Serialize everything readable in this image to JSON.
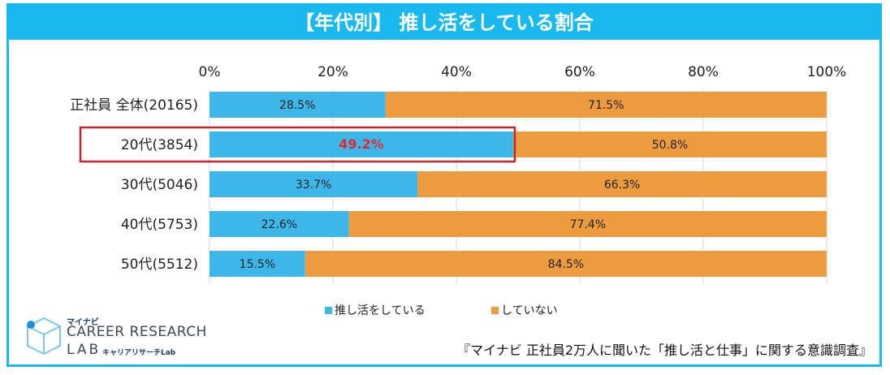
{
  "title": "【年代別】 推し活をしている割合",
  "colors": {
    "header": "#19b9f0",
    "series_doing": "#3db7ea",
    "series_not": "#ed9b3f",
    "highlight": "#c0272d",
    "highlight_text": "#e8262e"
  },
  "chart_data": {
    "type": "bar",
    "orientation": "horizontal",
    "stacked": true,
    "percent_stacked": true,
    "categories": [
      "正社員 全体(20165)",
      "20代(3854)",
      "30代(5046)",
      "40代(5753)",
      "50代(5512)"
    ],
    "series": [
      {
        "name": "推し活をしている",
        "values": [
          28.5,
          49.2,
          33.7,
          22.6,
          15.5
        ],
        "labels": [
          "28.5%",
          "49.2%",
          "33.7%",
          "22.6%",
          "15.5%"
        ]
      },
      {
        "name": "していない",
        "values": [
          71.5,
          50.8,
          66.3,
          77.4,
          84.5
        ],
        "labels": [
          "71.5%",
          "50.8%",
          "66.3%",
          "77.4%",
          "84.5%"
        ]
      }
    ],
    "xlim": [
      0,
      100
    ],
    "x_ticks": [
      "0%",
      "20%",
      "40%",
      "60%",
      "80%",
      "100%"
    ],
    "grid": true,
    "legend_position": "bottom",
    "highlighted_category": "20代(3854)"
  },
  "logo": {
    "brand": "マイナビ",
    "line1": "CAREER RESEARCH",
    "line2": "LAB",
    "sub": "キャリアリサーチLab",
    "icon": "cube-logo-icon"
  },
  "source": "『マイナビ 正社員2万人に聞いた「推し活と仕事」に関する意識調査』"
}
